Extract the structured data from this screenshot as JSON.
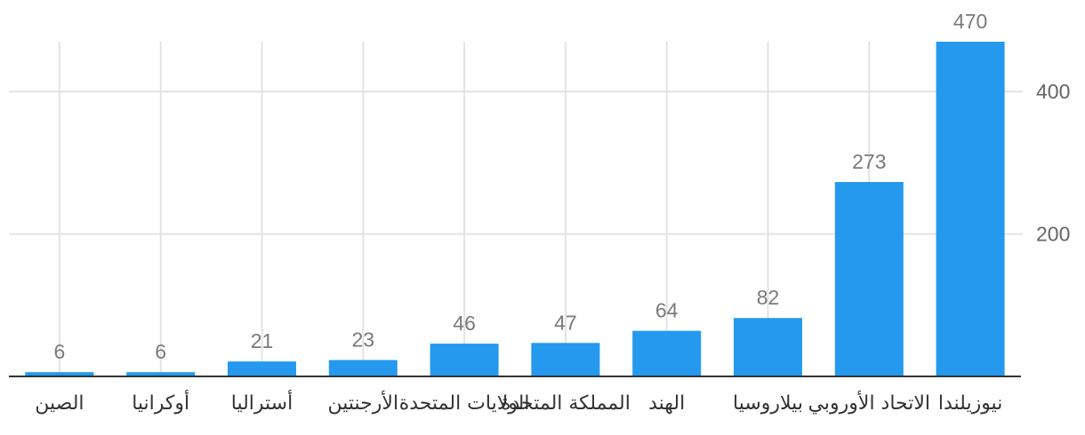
{
  "chart_data": {
    "type": "bar",
    "title": "",
    "xlabel": "",
    "ylabel": "",
    "categories": [
      "الصين",
      "أوكرانيا",
      "أستراليا",
      "الأرجنتين",
      "الولايات المتحدة",
      "المملكة المتحدة",
      "الهند",
      "بيلاروسيا",
      "الاتحاد الأوروبي",
      "نيوزيلندا"
    ],
    "values": [
      6,
      6,
      21,
      23,
      46,
      47,
      64,
      82,
      273,
      470
    ],
    "ylim": [
      0,
      470
    ],
    "yticks": [
      "200",
      "400"
    ],
    "grid": true,
    "y_axis_side": "right",
    "colors": {
      "bar": "#2499ee",
      "grid": "#e3e3e3",
      "baseline": "#333333"
    }
  }
}
